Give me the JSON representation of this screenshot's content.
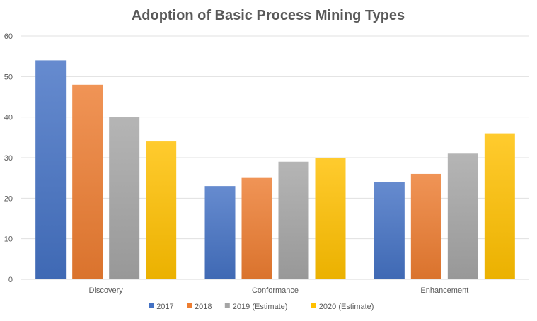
{
  "chart_data": {
    "type": "bar",
    "title": "Adoption of Basic Process Mining Types",
    "categories": [
      "Discovery",
      "Conformance",
      "Enhancement"
    ],
    "series": [
      {
        "name": "2017",
        "values": [
          54,
          23,
          24
        ],
        "color": "#4472C4"
      },
      {
        "name": "2018",
        "values": [
          48,
          25,
          26
        ],
        "color": "#ED7D31"
      },
      {
        "name": "2019 (Estimate)",
        "values": [
          40,
          29,
          31
        ],
        "color": "#A5A5A5"
      },
      {
        "name": "2020 (Estimate)",
        "values": [
          34,
          30,
          36
        ],
        "color": "#FFC000"
      }
    ],
    "ylim": [
      0,
      60
    ],
    "yticks": [
      0,
      10,
      20,
      30,
      40,
      50,
      60
    ],
    "grid": true,
    "legend_position": "bottom"
  }
}
